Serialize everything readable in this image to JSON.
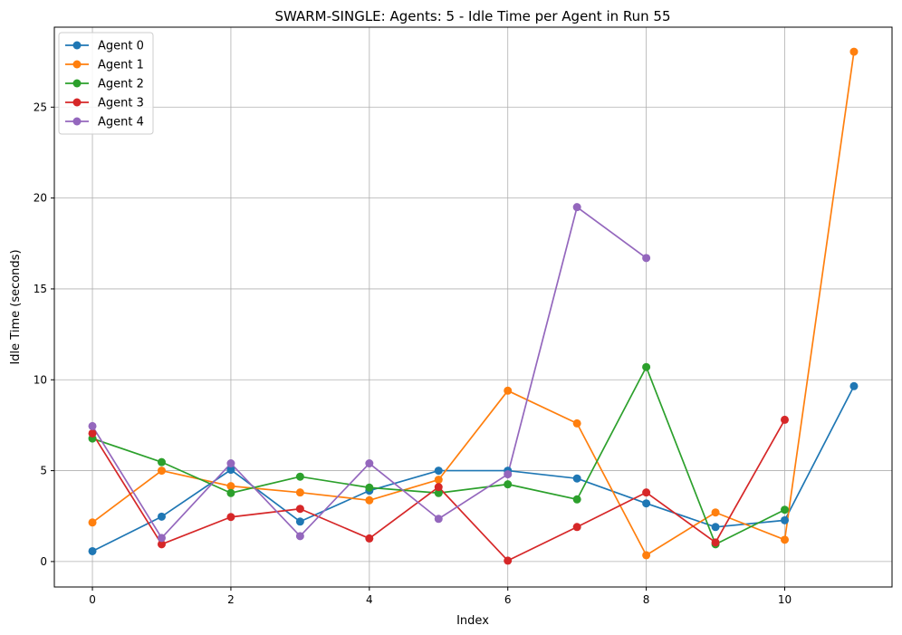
{
  "chart_data": {
    "type": "line",
    "title": "SWARM-SINGLE: Agents: 5 - Idle Time per Agent in Run 55",
    "xlabel": "Index",
    "ylabel": "Idle Time (seconds)",
    "xlim": [
      -0.55,
      11.55
    ],
    "ylim": [
      -1.4,
      29.4
    ],
    "xticks": [
      0,
      2,
      4,
      6,
      8,
      10
    ],
    "yticks": [
      0,
      5,
      10,
      15,
      20,
      25
    ],
    "grid": true,
    "legend_position": "upper-left",
    "series": [
      {
        "name": "Agent 0",
        "color": "#1f77b4",
        "x": [
          0,
          1,
          2,
          3,
          4,
          5,
          6,
          7,
          8,
          9,
          10,
          11
        ],
        "values": [
          0.57,
          2.47,
          5.05,
          2.2,
          3.9,
          5.0,
          5.0,
          4.57,
          3.2,
          1.9,
          2.27,
          9.65
        ]
      },
      {
        "name": "Agent 1",
        "color": "#ff7f0e",
        "x": [
          0,
          1,
          2,
          3,
          4,
          5,
          6,
          7,
          8,
          9,
          10,
          11
        ],
        "values": [
          2.15,
          5.0,
          4.15,
          3.8,
          3.37,
          4.5,
          9.4,
          7.6,
          0.35,
          2.7,
          1.2,
          28.05
        ]
      },
      {
        "name": "Agent 2",
        "color": "#2ca02c",
        "x": [
          0,
          1,
          2,
          3,
          4,
          5,
          6,
          7,
          8,
          9,
          10
        ],
        "values": [
          6.77,
          5.47,
          3.77,
          4.67,
          4.07,
          3.77,
          4.25,
          3.42,
          10.7,
          0.95,
          2.85
        ]
      },
      {
        "name": "Agent 3",
        "color": "#d62728",
        "x": [
          0,
          1,
          2,
          3,
          4,
          5,
          6,
          7,
          8,
          9,
          10
        ],
        "values": [
          7.05,
          0.95,
          2.45,
          2.9,
          1.27,
          4.1,
          0.05,
          1.9,
          3.8,
          1.05,
          7.8
        ]
      },
      {
        "name": "Agent 4",
        "color": "#9467bd",
        "x": [
          0,
          1,
          2,
          3,
          4,
          5,
          6,
          7,
          8
        ],
        "values": [
          7.45,
          1.3,
          5.4,
          1.4,
          5.4,
          2.35,
          4.8,
          19.5,
          16.7
        ]
      }
    ]
  }
}
